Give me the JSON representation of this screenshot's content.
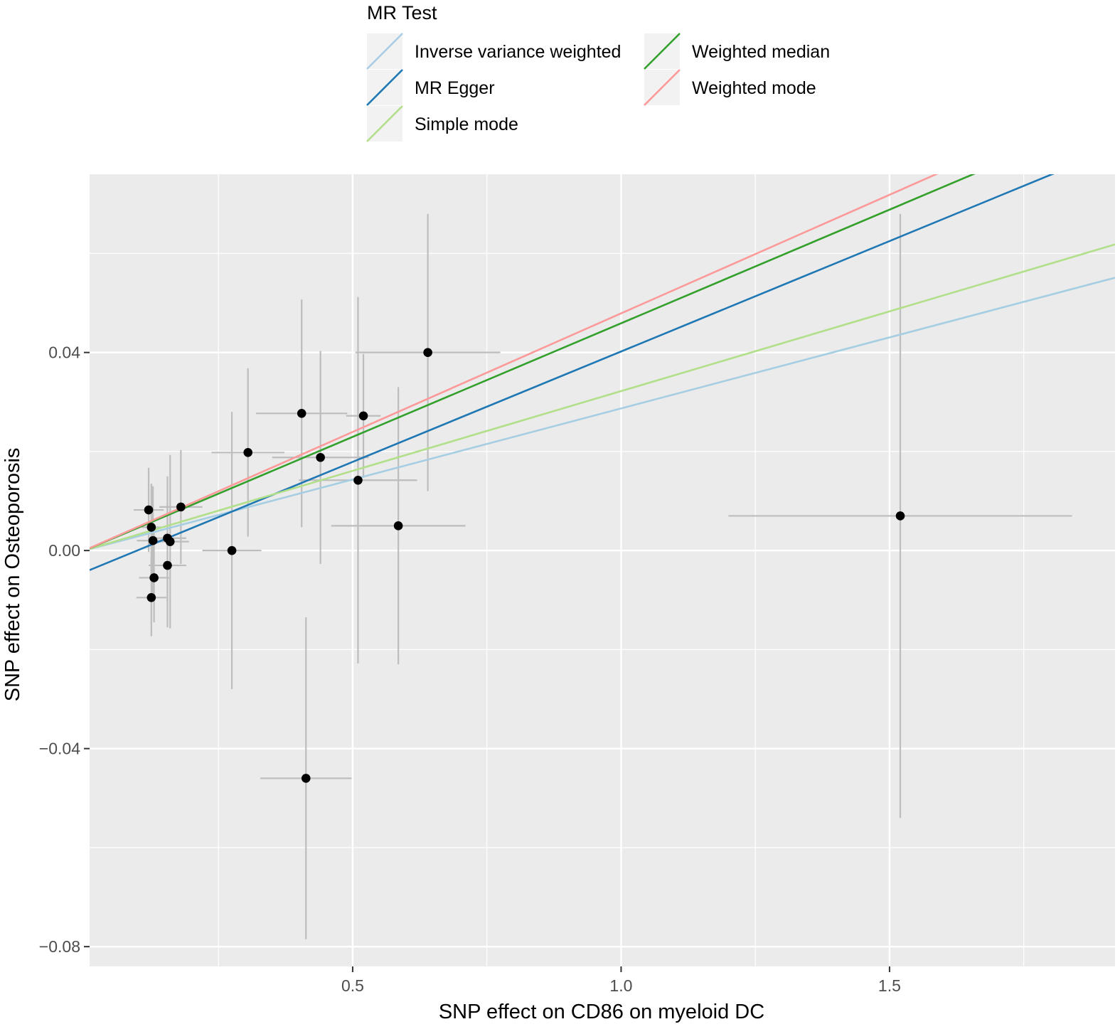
{
  "chart_data": {
    "type": "scatter",
    "title": "",
    "xlabel": "SNP effect on CD86 on myeloid DC",
    "ylabel": "SNP effect on Osteoporosis",
    "xlim": [
      0.01,
      1.92
    ],
    "ylim": [
      -0.084,
      0.076
    ],
    "x_ticks": [
      {
        "value": 0.5,
        "label": "0.5"
      },
      {
        "value": 1.0,
        "label": "1.0"
      },
      {
        "value": 1.5,
        "label": "1.5"
      }
    ],
    "y_ticks": [
      {
        "value": 0.04,
        "label": "0.04"
      },
      {
        "value": 0.0,
        "label": "0.00"
      },
      {
        "value": -0.04,
        "label": "−0.04"
      },
      {
        "value": -0.08,
        "label": "−0.08"
      }
    ],
    "x_minor_grid": [
      0.25,
      0.75,
      1.25,
      1.75
    ],
    "y_minor_grid": [
      0.06,
      0.02,
      -0.02,
      -0.06
    ],
    "points": [
      {
        "x": 0.12,
        "y": 0.0082,
        "xerr": 0.028,
        "yerr": 0.0085
      },
      {
        "x": 0.125,
        "y": 0.0047,
        "xerr": 0.018,
        "yerr": 0.0088
      },
      {
        "x": 0.128,
        "y": 0.002,
        "xerr": 0.03,
        "yerr": 0.011
      },
      {
        "x": 0.125,
        "y": -0.0095,
        "xerr": 0.028,
        "yerr": 0.0078
      },
      {
        "x": 0.13,
        "y": -0.0055,
        "xerr": 0.028,
        "yerr": 0.009
      },
      {
        "x": 0.155,
        "y": 0.0025,
        "xerr": 0.035,
        "yerr": 0.0125
      },
      {
        "x": 0.16,
        "y": 0.0018,
        "xerr": 0.035,
        "yerr": 0.0175
      },
      {
        "x": 0.155,
        "y": -0.003,
        "xerr": 0.035,
        "yerr": 0.0125
      },
      {
        "x": 0.18,
        "y": 0.0088,
        "xerr": 0.04,
        "yerr": 0.0115
      },
      {
        "x": 0.275,
        "y": 0.0,
        "xerr": 0.055,
        "yerr": 0.028
      },
      {
        "x": 0.305,
        "y": 0.0198,
        "xerr": 0.068,
        "yerr": 0.017
      },
      {
        "x": 0.405,
        "y": 0.0277,
        "xerr": 0.085,
        "yerr": 0.023
      },
      {
        "x": 0.44,
        "y": 0.0188,
        "xerr": 0.09,
        "yerr": 0.0215
      },
      {
        "x": 0.413,
        "y": -0.046,
        "xerr": 0.085,
        "yerr": 0.0325
      },
      {
        "x": 0.51,
        "y": 0.0142,
        "xerr": 0.11,
        "yerr": 0.037
      },
      {
        "x": 0.52,
        "y": 0.0272,
        "xerr": 0.032,
        "yerr": 0.0125
      },
      {
        "x": 0.585,
        "y": 0.005,
        "xerr": 0.125,
        "yerr": 0.028
      },
      {
        "x": 0.64,
        "y": 0.04,
        "xerr": 0.135,
        "yerr": 0.028
      },
      {
        "x": 1.52,
        "y": 0.007,
        "xerr": 0.32,
        "yerr": 0.061
      }
    ],
    "series": [
      {
        "name": "Inverse variance weighted",
        "color": "#a6cee3",
        "slope": 0.0287,
        "intercept": 0.0
      },
      {
        "name": "MR Egger",
        "color": "#1f78b4",
        "slope": 0.0446,
        "intercept": -0.0044
      },
      {
        "name": "Simple mode",
        "color": "#b2df8a",
        "slope": 0.0322,
        "intercept": 0.0
      },
      {
        "name": "Weighted median",
        "color": "#33a02c",
        "slope": 0.0459,
        "intercept": 0.0
      },
      {
        "name": "Weighted mode",
        "color": "#fb9a99",
        "slope": 0.0479,
        "intercept": 0.0
      }
    ],
    "legend": {
      "title": "MR Test",
      "position": "top",
      "columns": [
        [
          "Inverse variance weighted",
          "MR Egger",
          "Simple mode"
        ],
        [
          "Weighted median",
          "Weighted mode"
        ]
      ]
    },
    "colors": {
      "panel": "#ebebeb",
      "grid": "#ffffff",
      "errorbar": "#bdbdbd",
      "point": "#000000"
    }
  }
}
